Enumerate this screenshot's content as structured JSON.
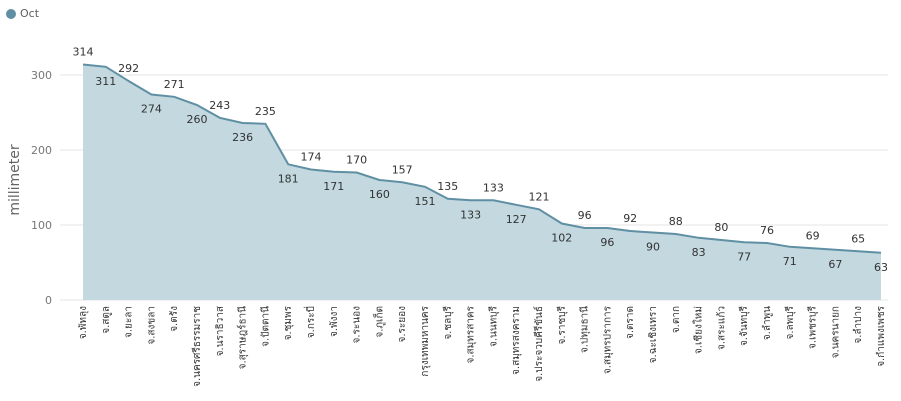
{
  "legend": {
    "name": "Oct",
    "color": "#5f8fa3"
  },
  "chart_data": {
    "type": "area",
    "title": "",
    "xlabel": "",
    "ylabel": "millimeter",
    "ylim": [
      0,
      330
    ],
    "yticks": [
      0,
      100,
      200,
      300
    ],
    "grid": true,
    "legend_position": "top-left",
    "colors": {
      "line": "#5f8fa3",
      "fill": "#c3d8df",
      "grid": "#e6e6e6"
    },
    "categories": [
      "จ.พัทลุง",
      "จ.สตูล",
      "จ.ยะลา",
      "จ.สงขลา",
      "จ.ตรัง",
      "จ.นครศรีธรรมราช",
      "จ.นราธิวาส",
      "จ.สุราษฎร์ธานี",
      "จ.ปัตตานี",
      "จ.ชุมพร",
      "จ.กระบี่",
      "จ.พังงา",
      "จ.ระนอง",
      "จ.ภูเก็ต",
      "จ.ระยอง",
      "กรุงเทพมหานคร",
      "จ.ชลบุรี",
      "จ.สมุทรสาคร",
      "จ.นนทบุรี",
      "จ.สมุทรสงคราม",
      "จ.ประจวบคีรีขันธ์",
      "จ.ราชบุรี",
      "จ.ปทุมธานี",
      "จ.สมุทรปราการ",
      "จ.ตราด",
      "จ.ฉะเชิงเทรา",
      "จ.ตาก",
      "จ.เชียงใหม่",
      "จ.สระแก้ว",
      "จ.จันทบุรี",
      "จ.ลำพูน",
      "จ.ลพบุรี",
      "จ.เพชรบุรี",
      "จ.นครนายก",
      "จ.ลำปาง",
      "จ.กำแพงเพชร"
    ],
    "series": [
      {
        "name": "Oct",
        "values": [
          314,
          311,
          292,
          274,
          271,
          260,
          243,
          236,
          235,
          181,
          174,
          171,
          170,
          160,
          157,
          151,
          135,
          133,
          133,
          127,
          121,
          102,
          96,
          96,
          92,
          90,
          88,
          83,
          80,
          77,
          76,
          71,
          69,
          67,
          65,
          63
        ]
      }
    ]
  }
}
